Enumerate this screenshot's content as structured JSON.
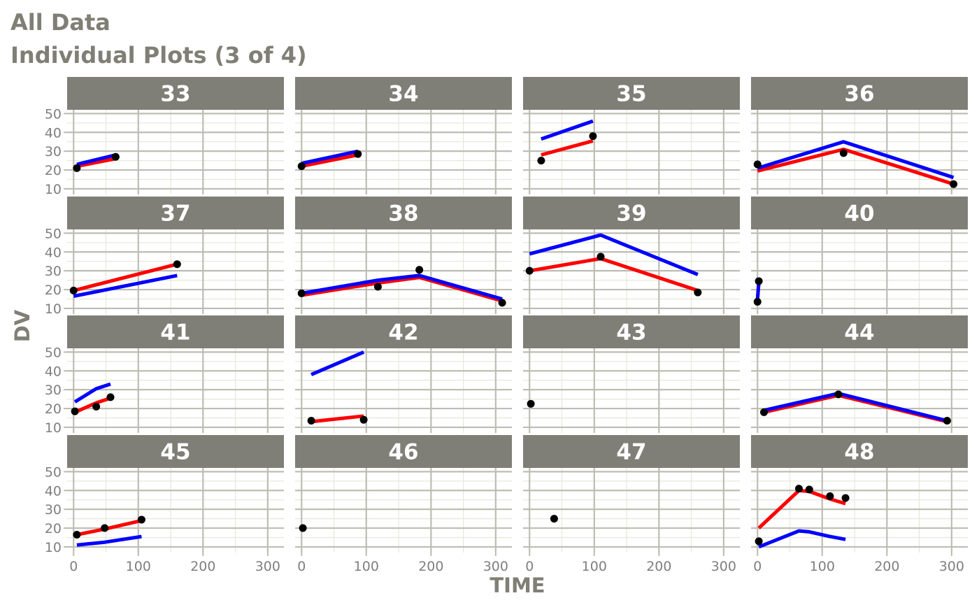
{
  "title": "All Data",
  "subtitle": "Individual Plots (3 of 4)",
  "chart_data": {
    "type": "line",
    "title": "All Data",
    "subtitle": "Individual Plots (3 of 4)",
    "xlabel": "TIME",
    "ylabel": "DV",
    "xlim": [
      -10,
      325
    ],
    "ylim": [
      7,
      52
    ],
    "x_ticks": [
      0,
      100,
      200,
      300
    ],
    "y_ticks": [
      10,
      20,
      30,
      40,
      50
    ],
    "grid": true,
    "layout": "4x4 facets",
    "colors": {
      "strip": "#7f7f77",
      "panel": "#ffffff",
      "grid_major": "#bdbdb3",
      "grid_minor": "#e4e8d8",
      "observed": "#000000",
      "red_series": "#ff0000",
      "blue_series": "#0000ff"
    },
    "panels": [
      {
        "id": "33",
        "points": [
          [
            5,
            21
          ],
          [
            65,
            27
          ]
        ],
        "red": [
          [
            5,
            22
          ],
          [
            65,
            26
          ]
        ],
        "blue": [
          [
            5,
            23
          ],
          [
            65,
            28
          ]
        ]
      },
      {
        "id": "34",
        "points": [
          [
            0,
            22
          ],
          [
            87,
            28.5
          ]
        ],
        "red": [
          [
            0,
            22
          ],
          [
            87,
            28
          ]
        ],
        "blue": [
          [
            0,
            23.5
          ],
          [
            87,
            30
          ]
        ]
      },
      {
        "id": "35",
        "points": [
          [
            18,
            25
          ],
          [
            98,
            38
          ]
        ],
        "red": [
          [
            18,
            28
          ],
          [
            98,
            35.5
          ]
        ],
        "blue": [
          [
            18,
            36.5
          ],
          [
            98,
            46
          ]
        ]
      },
      {
        "id": "36",
        "points": [
          [
            0,
            23
          ],
          [
            133,
            29
          ],
          [
            303,
            12.5
          ]
        ],
        "red": [
          [
            0,
            19.5
          ],
          [
            133,
            31
          ],
          [
            303,
            12.5
          ]
        ],
        "blue": [
          [
            0,
            21
          ],
          [
            133,
            35
          ],
          [
            303,
            16
          ]
        ]
      },
      {
        "id": "37",
        "points": [
          [
            0,
            19.5
          ],
          [
            160,
            33.5
          ]
        ],
        "red": [
          [
            0,
            19.5
          ],
          [
            160,
            33.5
          ]
        ],
        "blue": [
          [
            0,
            16.5
          ],
          [
            160,
            27.5
          ]
        ]
      },
      {
        "id": "38",
        "points": [
          [
            0,
            18
          ],
          [
            118,
            21.5
          ],
          [
            182,
            30.5
          ],
          [
            310,
            13
          ]
        ],
        "red": [
          [
            0,
            17
          ],
          [
            118,
            23.5
          ],
          [
            182,
            26.5
          ],
          [
            310,
            14
          ]
        ],
        "blue": [
          [
            0,
            18
          ],
          [
            118,
            25
          ],
          [
            182,
            27.5
          ],
          [
            310,
            15
          ]
        ]
      },
      {
        "id": "39",
        "points": [
          [
            0,
            30
          ],
          [
            110,
            37.5
          ],
          [
            260,
            18.5
          ]
        ],
        "red": [
          [
            0,
            30
          ],
          [
            110,
            36.5
          ],
          [
            260,
            19.5
          ]
        ],
        "blue": [
          [
            0,
            39
          ],
          [
            110,
            49
          ],
          [
            260,
            28
          ]
        ]
      },
      {
        "id": "40",
        "points": [
          [
            0,
            13.5
          ],
          [
            2,
            24.5
          ]
        ],
        "red": [
          [
            0,
            15
          ],
          [
            2,
            24
          ]
        ],
        "blue": [
          [
            0,
            15
          ],
          [
            2,
            23.5
          ]
        ]
      },
      {
        "id": "41",
        "points": [
          [
            2,
            18.5
          ],
          [
            35,
            21
          ],
          [
            57,
            26
          ]
        ],
        "red": [
          [
            2,
            18
          ],
          [
            35,
            23
          ],
          [
            57,
            25.5
          ]
        ],
        "blue": [
          [
            2,
            23.5
          ],
          [
            35,
            30.5
          ],
          [
            57,
            33
          ]
        ]
      },
      {
        "id": "42",
        "points": [
          [
            15,
            13.5
          ],
          [
            96,
            14
          ]
        ],
        "red": [
          [
            15,
            13
          ],
          [
            96,
            16
          ]
        ],
        "blue": [
          [
            15,
            38
          ],
          [
            96,
            50
          ]
        ]
      },
      {
        "id": "43",
        "points": [
          [
            2,
            22.5
          ]
        ],
        "red": [],
        "blue": []
      },
      {
        "id": "44",
        "points": [
          [
            10,
            18
          ],
          [
            125,
            27.5
          ],
          [
            293,
            13.5
          ]
        ],
        "red": [
          [
            10,
            18
          ],
          [
            125,
            27
          ],
          [
            293,
            13
          ]
        ],
        "blue": [
          [
            10,
            19
          ],
          [
            125,
            28
          ],
          [
            293,
            13.5
          ]
        ]
      },
      {
        "id": "45",
        "points": [
          [
            5,
            16.5
          ],
          [
            48,
            20
          ],
          [
            105,
            24.5
          ]
        ],
        "red": [
          [
            5,
            16.5
          ],
          [
            48,
            19.5
          ],
          [
            105,
            24
          ]
        ],
        "blue": [
          [
            5,
            11
          ],
          [
            48,
            12.5
          ],
          [
            105,
            15.5
          ]
        ]
      },
      {
        "id": "46",
        "points": [
          [
            2,
            20
          ]
        ],
        "red": [],
        "blue": []
      },
      {
        "id": "47",
        "points": [
          [
            38,
            25
          ]
        ],
        "red": [],
        "blue": []
      },
      {
        "id": "48",
        "points": [
          [
            2,
            13
          ],
          [
            64,
            41
          ],
          [
            80,
            40.5
          ],
          [
            112,
            37
          ],
          [
            136,
            36
          ]
        ],
        "red": [
          [
            2,
            20
          ],
          [
            64,
            40
          ],
          [
            80,
            39.5
          ],
          [
            112,
            35.5
          ],
          [
            136,
            33
          ]
        ],
        "blue": [
          [
            2,
            10
          ],
          [
            64,
            18.5
          ],
          [
            80,
            18
          ],
          [
            112,
            15.5
          ],
          [
            136,
            14
          ]
        ]
      }
    ]
  }
}
